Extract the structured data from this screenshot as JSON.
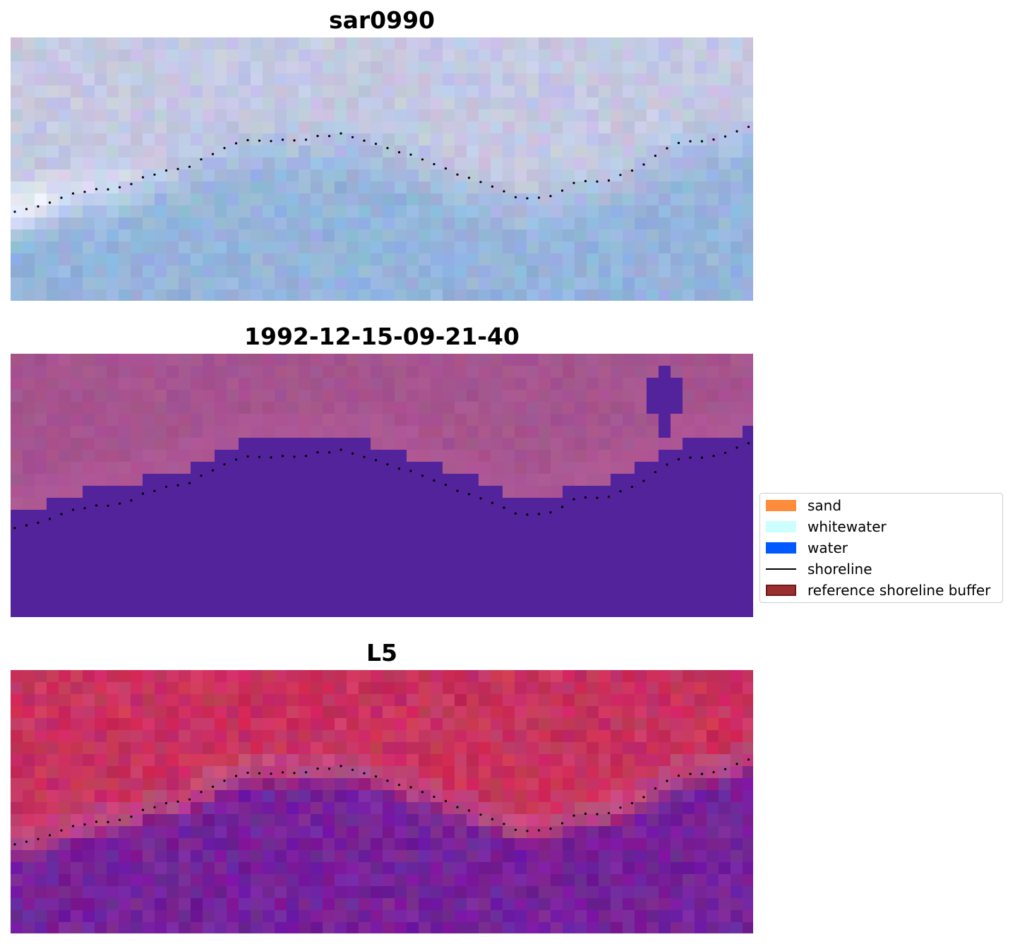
{
  "panels": [
    {
      "title": "sar0990"
    },
    {
      "title": "1992-12-15-09-21-40"
    },
    {
      "title": "L5"
    }
  ],
  "colors": {
    "background": "#ffffff",
    "rgb_land": "#c4c8e2",
    "rgb_water": "#94b4dc",
    "rgb_whitewater": "#f6f8ff",
    "class_land": "#a5548e",
    "class_water": "#52239a",
    "nir_land": "#c8325e",
    "nir_water": "#75229a",
    "shoreline_dots": "#000000"
  },
  "legend": {
    "items": [
      {
        "label": "sand",
        "color": "#ff8c3a",
        "kind": "patch"
      },
      {
        "label": "whitewater",
        "color": "#ccfffe",
        "kind": "patch"
      },
      {
        "label": "water",
        "color": "#0059ff",
        "kind": "patch"
      },
      {
        "label": "shoreline",
        "color": "#000000",
        "kind": "line"
      },
      {
        "label": "reference shoreline buffer",
        "color": "#9b2f2f",
        "kind": "patch"
      }
    ]
  }
}
